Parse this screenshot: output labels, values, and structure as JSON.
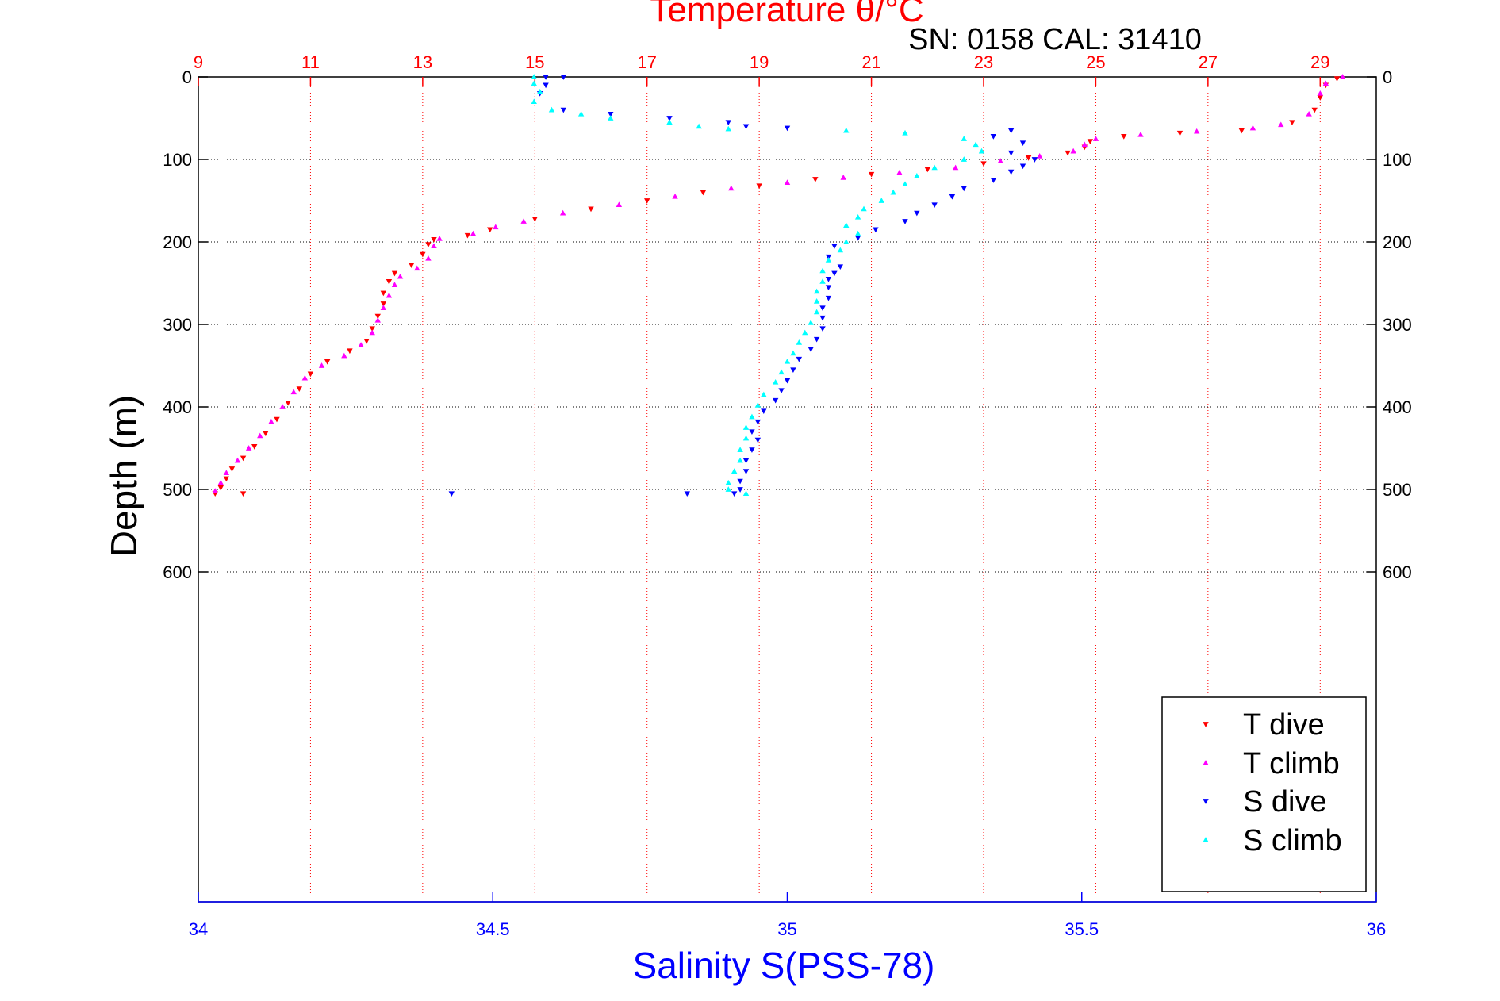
{
  "chart_data": {
    "type": "scatter",
    "title": "Temperature θ/°C",
    "annotation": "SN: 0158  CAL: 31410",
    "xlabel": "Salinity S(PSS-78)",
    "ylabel": "Depth (m)",
    "legend_position": "bottom-right",
    "grid": true,
    "y_axis": {
      "range": [
        0,
        1000
      ],
      "reversed": true,
      "ticks": [
        0,
        100,
        200,
        300,
        400,
        500,
        600
      ],
      "tick_labels": [
        "0",
        "100",
        "200",
        "300",
        "400",
        "500",
        "600"
      ]
    },
    "temperature_axis": {
      "position": "top",
      "range": [
        9,
        30
      ],
      "ticks": [
        9,
        11,
        13,
        15,
        17,
        19,
        21,
        23,
        25,
        27,
        29
      ],
      "tick_labels": [
        "9",
        "11",
        "13",
        "15",
        "17",
        "19",
        "21",
        "23",
        "25",
        "27",
        "29"
      ],
      "color": "#ff0000"
    },
    "salinity_axis": {
      "position": "bottom",
      "range": [
        34,
        36
      ],
      "ticks": [
        34,
        34.5,
        35,
        35.5,
        36
      ],
      "tick_labels": [
        "34",
        "34.5",
        "35",
        "35.5",
        "36"
      ],
      "color": "#0000ff"
    },
    "series": [
      {
        "name": "T dive",
        "axis": "temperature",
        "marker": "triangle-down",
        "color": "#ff0000",
        "points": [
          [
            29.3,
            2
          ],
          [
            29.1,
            10
          ],
          [
            29.0,
            25
          ],
          [
            28.9,
            40
          ],
          [
            28.5,
            55
          ],
          [
            27.6,
            65
          ],
          [
            26.5,
            68
          ],
          [
            25.5,
            72
          ],
          [
            24.9,
            78
          ],
          [
            24.8,
            85
          ],
          [
            24.5,
            92
          ],
          [
            23.8,
            98
          ],
          [
            23.0,
            105
          ],
          [
            22.0,
            112
          ],
          [
            21.0,
            118
          ],
          [
            20.0,
            124
          ],
          [
            19.0,
            132
          ],
          [
            18.0,
            140
          ],
          [
            17.0,
            150
          ],
          [
            16.0,
            160
          ],
          [
            15.0,
            172
          ],
          [
            14.2,
            185
          ],
          [
            13.8,
            192
          ],
          [
            13.2,
            197
          ],
          [
            13.1,
            203
          ],
          [
            13.0,
            215
          ],
          [
            12.8,
            228
          ],
          [
            12.5,
            238
          ],
          [
            12.4,
            248
          ],
          [
            12.3,
            262
          ],
          [
            12.3,
            275
          ],
          [
            12.2,
            290
          ],
          [
            12.1,
            305
          ],
          [
            12.0,
            320
          ],
          [
            11.7,
            332
          ],
          [
            11.3,
            345
          ],
          [
            11.0,
            360
          ],
          [
            10.8,
            378
          ],
          [
            10.6,
            395
          ],
          [
            10.4,
            415
          ],
          [
            10.2,
            432
          ],
          [
            10.0,
            448
          ],
          [
            9.8,
            462
          ],
          [
            9.6,
            475
          ],
          [
            9.5,
            487
          ],
          [
            9.4,
            498
          ],
          [
            9.3,
            505
          ],
          [
            9.8,
            505
          ]
        ]
      },
      {
        "name": "T climb",
        "axis": "temperature",
        "marker": "triangle-up",
        "color": "#ff00ff",
        "points": [
          [
            29.4,
            0
          ],
          [
            29.1,
            8
          ],
          [
            29.0,
            20
          ],
          [
            28.8,
            45
          ],
          [
            28.3,
            58
          ],
          [
            27.8,
            62
          ],
          [
            26.8,
            66
          ],
          [
            25.8,
            70
          ],
          [
            25.0,
            75
          ],
          [
            24.8,
            82
          ],
          [
            24.6,
            90
          ],
          [
            24.0,
            96
          ],
          [
            23.3,
            102
          ],
          [
            22.5,
            110
          ],
          [
            21.5,
            116
          ],
          [
            20.5,
            122
          ],
          [
            19.5,
            128
          ],
          [
            18.5,
            135
          ],
          [
            17.5,
            145
          ],
          [
            16.5,
            155
          ],
          [
            15.5,
            165
          ],
          [
            14.8,
            175
          ],
          [
            14.3,
            182
          ],
          [
            13.9,
            190
          ],
          [
            13.3,
            196
          ],
          [
            13.2,
            205
          ],
          [
            13.1,
            220
          ],
          [
            12.9,
            232
          ],
          [
            12.6,
            242
          ],
          [
            12.5,
            252
          ],
          [
            12.4,
            265
          ],
          [
            12.3,
            280
          ],
          [
            12.2,
            295
          ],
          [
            12.1,
            310
          ],
          [
            11.9,
            325
          ],
          [
            11.6,
            338
          ],
          [
            11.2,
            350
          ],
          [
            10.9,
            365
          ],
          [
            10.7,
            382
          ],
          [
            10.5,
            400
          ],
          [
            10.3,
            418
          ],
          [
            10.1,
            435
          ],
          [
            9.9,
            450
          ],
          [
            9.7,
            465
          ],
          [
            9.5,
            480
          ],
          [
            9.4,
            492
          ],
          [
            9.3,
            502
          ]
        ]
      },
      {
        "name": "S dive",
        "axis": "salinity",
        "marker": "triangle-down",
        "color": "#0000ff",
        "points": [
          [
            34.59,
            0
          ],
          [
            34.62,
            0
          ],
          [
            34.59,
            10
          ],
          [
            34.58,
            20
          ],
          [
            34.62,
            40
          ],
          [
            34.7,
            45
          ],
          [
            34.8,
            50
          ],
          [
            34.9,
            55
          ],
          [
            34.93,
            60
          ],
          [
            35.0,
            62
          ],
          [
            35.38,
            65
          ],
          [
            35.35,
            72
          ],
          [
            35.4,
            80
          ],
          [
            35.38,
            92
          ],
          [
            35.42,
            100
          ],
          [
            35.4,
            108
          ],
          [
            35.38,
            115
          ],
          [
            35.35,
            125
          ],
          [
            35.3,
            135
          ],
          [
            35.28,
            145
          ],
          [
            35.25,
            155
          ],
          [
            35.22,
            165
          ],
          [
            35.2,
            175
          ],
          [
            35.15,
            185
          ],
          [
            35.12,
            195
          ],
          [
            35.08,
            205
          ],
          [
            35.07,
            218
          ],
          [
            35.09,
            230
          ],
          [
            35.08,
            238
          ],
          [
            35.07,
            245
          ],
          [
            35.07,
            255
          ],
          [
            35.07,
            268
          ],
          [
            35.06,
            280
          ],
          [
            35.06,
            292
          ],
          [
            35.06,
            305
          ],
          [
            35.05,
            318
          ],
          [
            35.04,
            330
          ],
          [
            35.02,
            342
          ],
          [
            35.01,
            355
          ],
          [
            35.0,
            368
          ],
          [
            34.99,
            380
          ],
          [
            34.98,
            392
          ],
          [
            34.96,
            405
          ],
          [
            34.95,
            418
          ],
          [
            34.94,
            430
          ],
          [
            34.95,
            440
          ],
          [
            34.94,
            452
          ],
          [
            34.93,
            465
          ],
          [
            34.93,
            478
          ],
          [
            34.92,
            490
          ],
          [
            34.92,
            500
          ],
          [
            34.91,
            505
          ],
          [
            34.43,
            505
          ],
          [
            34.83,
            505
          ]
        ]
      },
      {
        "name": "S climb",
        "axis": "salinity",
        "marker": "triangle-up",
        "color": "#00ffff",
        "points": [
          [
            34.57,
            0
          ],
          [
            34.57,
            8
          ],
          [
            34.58,
            18
          ],
          [
            34.57,
            30
          ],
          [
            34.6,
            40
          ],
          [
            34.65,
            45
          ],
          [
            34.7,
            50
          ],
          [
            34.8,
            55
          ],
          [
            34.85,
            60
          ],
          [
            34.9,
            63
          ],
          [
            35.1,
            65
          ],
          [
            35.2,
            68
          ],
          [
            35.3,
            75
          ],
          [
            35.32,
            82
          ],
          [
            35.33,
            90
          ],
          [
            35.3,
            100
          ],
          [
            35.25,
            110
          ],
          [
            35.22,
            120
          ],
          [
            35.2,
            130
          ],
          [
            35.18,
            140
          ],
          [
            35.16,
            150
          ],
          [
            35.13,
            160
          ],
          [
            35.12,
            170
          ],
          [
            35.1,
            180
          ],
          [
            35.12,
            190
          ],
          [
            35.1,
            200
          ],
          [
            35.09,
            210
          ],
          [
            35.07,
            222
          ],
          [
            35.06,
            235
          ],
          [
            35.06,
            248
          ],
          [
            35.05,
            260
          ],
          [
            35.05,
            272
          ],
          [
            35.05,
            285
          ],
          [
            35.04,
            298
          ],
          [
            35.03,
            310
          ],
          [
            35.02,
            322
          ],
          [
            35.01,
            335
          ],
          [
            35.0,
            345
          ],
          [
            34.99,
            358
          ],
          [
            34.98,
            370
          ],
          [
            34.96,
            385
          ],
          [
            34.95,
            398
          ],
          [
            34.94,
            412
          ],
          [
            34.93,
            425
          ],
          [
            34.93,
            438
          ],
          [
            34.92,
            452
          ],
          [
            34.92,
            465
          ],
          [
            34.91,
            478
          ],
          [
            34.9,
            492
          ],
          [
            34.9,
            500
          ],
          [
            34.93,
            505
          ]
        ]
      }
    ]
  }
}
